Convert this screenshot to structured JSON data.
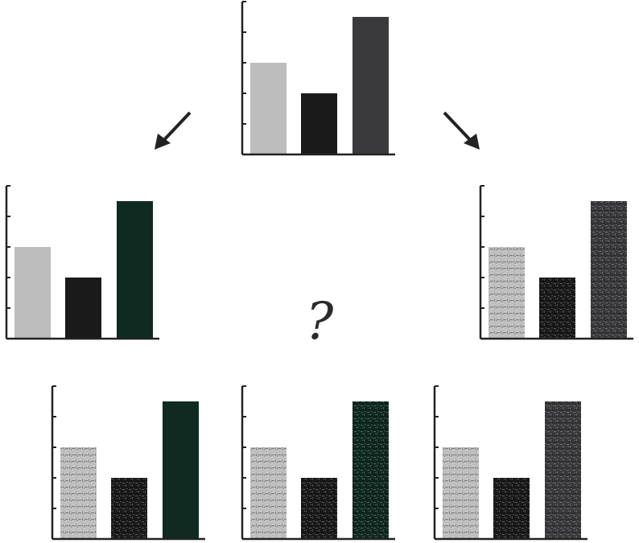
{
  "puzzle": {
    "question_mark": "?",
    "charts": [
      {
        "id": "source-chart",
        "bars": [
          {
            "value": 3,
            "color": "#bdbdbd",
            "texture": "solid"
          },
          {
            "value": 2,
            "color": "#1a1a1a",
            "texture": "solid"
          },
          {
            "value": 4.5,
            "color": "#3a3a3c",
            "texture": "solid"
          }
        ]
      },
      {
        "id": "left-transform",
        "bars": [
          {
            "value": 3,
            "color": "#bdbdbd",
            "texture": "solid"
          },
          {
            "value": 2,
            "color": "#1a1a1a",
            "texture": "solid"
          },
          {
            "value": 4.5,
            "color": "#0f2a20",
            "texture": "solid"
          }
        ]
      },
      {
        "id": "right-transform",
        "bars": [
          {
            "value": 3,
            "color": "#bdbdbd",
            "texture": "grain"
          },
          {
            "value": 2,
            "color": "#1a1a1a",
            "texture": "grain"
          },
          {
            "value": 4.5,
            "color": "#3a3a3c",
            "texture": "grain"
          }
        ]
      },
      {
        "id": "option-1",
        "bars": [
          {
            "value": 3,
            "color": "#bdbdbd",
            "texture": "grain"
          },
          {
            "value": 2,
            "color": "#1a1a1a",
            "texture": "grain"
          },
          {
            "value": 4.5,
            "color": "#0f2a20",
            "texture": "solid"
          }
        ]
      },
      {
        "id": "option-2",
        "bars": [
          {
            "value": 3,
            "color": "#bdbdbd",
            "texture": "grain"
          },
          {
            "value": 2,
            "color": "#1a1a1a",
            "texture": "grain"
          },
          {
            "value": 4.5,
            "color": "#0f2a20",
            "texture": "grain"
          }
        ]
      },
      {
        "id": "option-3",
        "bars": [
          {
            "value": 3,
            "color": "#bdbdbd",
            "texture": "grain"
          },
          {
            "value": 2,
            "color": "#1a1a1a",
            "texture": "grain"
          },
          {
            "value": 4.5,
            "color": "#3a3a3c",
            "texture": "grain"
          }
        ]
      }
    ],
    "axis": {
      "ymax": 5,
      "ticks": 5
    },
    "arrows": [
      "arrow-down-left-icon",
      "arrow-down-right-icon"
    ]
  }
}
